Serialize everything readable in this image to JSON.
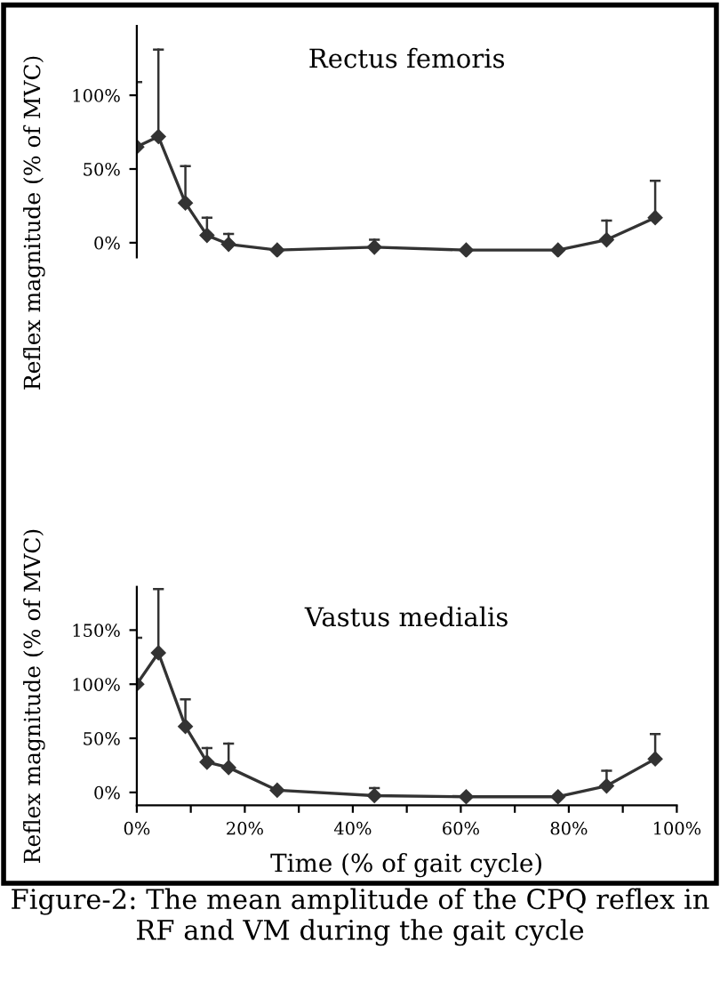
{
  "chart_data": [
    {
      "type": "line",
      "annotations": [
        "Rectus femoris"
      ],
      "ylabel": "Reflex magnitude (% of MVC)",
      "x": [
        0,
        4,
        9,
        13,
        17,
        26,
        44,
        61,
        78,
        87,
        96
      ],
      "xlim": [
        0,
        100
      ],
      "ylim": [
        -10,
        147
      ],
      "yticks": [
        {
          "value": 0,
          "label": "0%"
        },
        {
          "value": 50,
          "label": "50%"
        },
        {
          "value": 100,
          "label": "100%"
        }
      ],
      "tick_labels": "y",
      "marker": "diamond",
      "line_style": "solid",
      "grid": false,
      "legend": false,
      "series": [
        {
          "color": "#333333",
          "values": [
            65,
            72,
            27,
            5,
            -1,
            -5,
            -3,
            -5,
            -5,
            2,
            17
          ],
          "errors": [
            [
              65,
              109
            ],
            [
              72,
              131
            ],
            [
              27,
              52
            ],
            [
              5,
              17
            ],
            [
              -1,
              6
            ],
            null,
            [
              -3,
              2
            ],
            null,
            null,
            [
              2,
              15
            ],
            [
              17,
              42
            ]
          ]
        }
      ]
    },
    {
      "type": "line",
      "annotations": [
        "Vastus medialis",
        "Figure-2: The mean amplitude of the CPQ reflex in RF and VM during the gait cycle"
      ],
      "ylabel": "Reflex magnitude (% of MVC)",
      "xlabel": "Time (% of gait cycle)",
      "x": [
        0,
        4,
        9,
        13,
        17,
        26,
        44,
        61,
        78,
        87,
        96
      ],
      "xlim": [
        0,
        100
      ],
      "ylim": [
        -12,
        190
      ],
      "xticks": [
        {
          "value": 0,
          "label": "0%"
        },
        {
          "value": 10,
          "label": null
        },
        {
          "value": 20,
          "label": "20%"
        },
        {
          "value": 30,
          "label": null
        },
        {
          "value": 40,
          "label": "40%"
        },
        {
          "value": 50,
          "label": null
        },
        {
          "value": 60,
          "label": "60%"
        },
        {
          "value": 70,
          "label": null
        },
        {
          "value": 80,
          "label": "80%"
        },
        {
          "value": 90,
          "label": null
        },
        {
          "value": 100,
          "label": "100%"
        }
      ],
      "yticks": [
        {
          "value": 0,
          "label": "0%"
        },
        {
          "value": 50,
          "label": "50%"
        },
        {
          "value": 100,
          "label": "100%"
        },
        {
          "value": 150,
          "label": "150%"
        }
      ],
      "marker": "diamond",
      "line_style": "solid",
      "grid": false,
      "legend": false,
      "series": [
        {
          "color": "#333333",
          "values": [
            100,
            129,
            61,
            28,
            23,
            2,
            -3,
            -4,
            -4,
            6,
            31
          ],
          "errors": [
            [
              100,
              143
            ],
            [
              129,
              188
            ],
            [
              61,
              86
            ],
            [
              28,
              41
            ],
            [
              23,
              45
            ],
            null,
            [
              -3,
              4
            ],
            null,
            null,
            [
              6,
              20
            ],
            [
              31,
              54
            ]
          ]
        }
      ]
    }
  ]
}
